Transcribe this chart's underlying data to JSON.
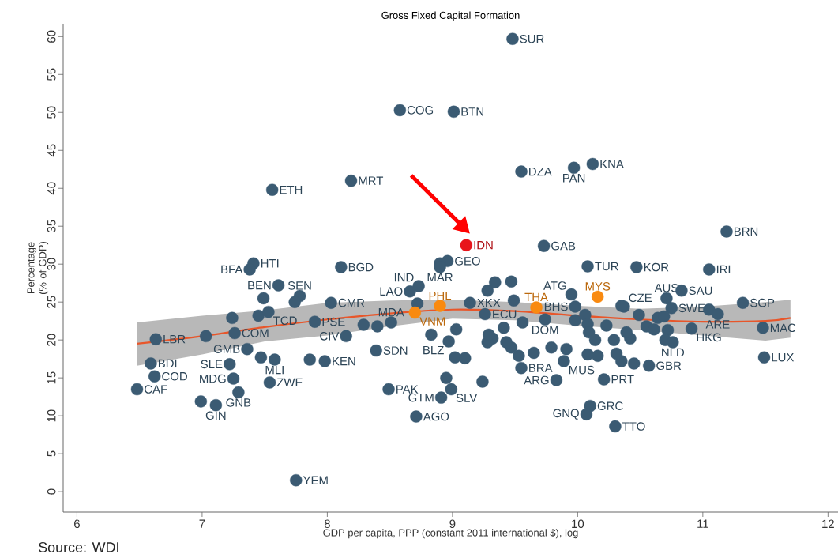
{
  "chart_data": {
    "type": "scatter",
    "title": "Gross Fixed Capital Formation",
    "xlabel": "GDP per capita, PPP (constant 2011 international $), log",
    "ylabel": "Percentage (% of GDP)",
    "xlim": [
      5.89,
      12.08
    ],
    "ylim": [
      -2.7,
      61.7
    ],
    "xticks": [
      6,
      7,
      8,
      9,
      10,
      11,
      12
    ],
    "yticks": [
      0,
      5,
      10,
      15,
      20,
      25,
      30,
      35,
      40,
      45,
      50,
      55,
      60
    ],
    "marker": "circle",
    "annotations": [
      "Source: WDI"
    ],
    "series": [
      {
        "color": "#3b5b73",
        "x": [
          9.48,
          8.58,
          9.01,
          9.55,
          9.97,
          10.12,
          8.19,
          7.56,
          9.73,
          11.19,
          7.41,
          7.38,
          8.11,
          8.96,
          8.9,
          8.9,
          10.08,
          10.47,
          11.05,
          7.61,
          7.49,
          7.78,
          7.74,
          8.03,
          7.24,
          7.45,
          7.53,
          7.9,
          6.63,
          7.03,
          7.26,
          7.36,
          7.47,
          7.58,
          7.86,
          7.98,
          8.15,
          8.39,
          8.29,
          8.4,
          8.51,
          6.59,
          6.62,
          6.48,
          7.22,
          7.25,
          7.54,
          7.29,
          6.99,
          7.11,
          7.75,
          8.49,
          8.71,
          8.73,
          8.66,
          8.72,
          9.14,
          9.26,
          9.34,
          9.47,
          9.28,
          9.49,
          9.74,
          9.56,
          9.95,
          9.98,
          10.37,
          10.35,
          9.98,
          10.06,
          10.08,
          10.09,
          10.14,
          10.23,
          10.29,
          10.35,
          10.08,
          10.16,
          10.31,
          9.79,
          9.91,
          9.89,
          9.83,
          10.21,
          9.65,
          9.53,
          9.55,
          9.47,
          9.43,
          9.41,
          9.32,
          9.28,
          9.29,
          9.03,
          8.97,
          8.83,
          9.02,
          9.1,
          8.95,
          8.99,
          8.91,
          9.24,
          10.1,
          10.07,
          10.3,
          10.71,
          10.83,
          10.75,
          10.49,
          10.64,
          10.69,
          11.05,
          11.12,
          11.32,
          10.91,
          11.48,
          11.49,
          10.57,
          10.45,
          10.55,
          10.61,
          10.72,
          10.42,
          10.7,
          10.76,
          10.39
        ],
        "values": [
          59.7,
          50.3,
          50.1,
          42.2,
          42.7,
          43.2,
          41.0,
          39.8,
          32.4,
          34.3,
          30.1,
          29.3,
          29.6,
          30.4,
          30.1,
          29.6,
          29.7,
          29.6,
          29.3,
          27.2,
          25.5,
          25.8,
          25.0,
          24.9,
          22.9,
          23.2,
          23.7,
          22.4,
          20.1,
          20.5,
          20.9,
          18.8,
          17.7,
          17.4,
          17.4,
          17.2,
          20.5,
          18.6,
          22.0,
          21.8,
          22.3,
          16.9,
          15.2,
          13.5,
          16.8,
          14.9,
          14.4,
          13.1,
          11.9,
          11.4,
          1.5,
          13.5,
          9.9,
          27.1,
          26.4,
          24.8,
          24.9,
          23.4,
          27.6,
          27.7,
          26.5,
          25.2,
          22.7,
          22.3,
          26.0,
          24.4,
          24.4,
          24.5,
          22.6,
          23.3,
          22.1,
          21.0,
          20.0,
          21.9,
          20.0,
          17.2,
          18.1,
          17.9,
          18.2,
          19.0,
          18.8,
          17.2,
          14.7,
          14.8,
          18.3,
          17.9,
          16.3,
          19.0,
          19.7,
          21.6,
          20.2,
          19.7,
          20.7,
          21.4,
          19.8,
          20.7,
          17.7,
          17.6,
          15.0,
          13.5,
          12.4,
          14.5,
          11.3,
          10.2,
          8.6,
          25.5,
          26.5,
          24.2,
          23.3,
          22.9,
          23.1,
          24.0,
          23.4,
          24.9,
          21.5,
          21.6,
          17.7,
          16.6,
          16.9,
          21.8,
          21.4,
          21.3,
          20.2,
          20.0,
          19.7,
          21.0
        ],
        "value_labels": [
          "SUR",
          "COG",
          "BTN",
          "DZA",
          "PAN",
          "KNA",
          "MRT",
          "ETH",
          "GAB",
          "BRN",
          "HTI",
          "BFA",
          "BGD",
          "GEO",
          null,
          "MAR",
          "TUR",
          "KOR",
          "IRL",
          "BEN",
          null,
          "SEN",
          null,
          "CMR",
          null,
          null,
          "TCD",
          "PSE",
          "LBR",
          null,
          "COM",
          "GMB",
          null,
          "MLI",
          null,
          "KEN",
          "CIV",
          "SDN",
          null,
          null,
          "MDA",
          "BDI",
          "COD",
          "CAF",
          "SLE",
          "MDG",
          "ZWE",
          "GNB",
          null,
          "GIN",
          "YEM",
          "PAK",
          "AGO",
          "IND",
          "LAO",
          null,
          "XKX",
          "ECU",
          null,
          null,
          null,
          null,
          "DOM",
          null,
          "ATG",
          "BHS",
          "CZE",
          null,
          null,
          null,
          null,
          null,
          null,
          null,
          null,
          null,
          null,
          null,
          null,
          null,
          null,
          "MUS",
          "ARG",
          "PRT",
          null,
          null,
          "BRA",
          null,
          null,
          null,
          null,
          null,
          null,
          null,
          "BLZ",
          null,
          null,
          null,
          null,
          "SLV",
          "GTM",
          null,
          "GRC",
          "GNQ",
          "TTO",
          "AUS",
          "SAU",
          "SWE",
          null,
          null,
          null,
          null,
          "ARE",
          "SGP",
          "HKG",
          "MAC",
          "LUX",
          "GBR",
          null,
          null,
          null,
          null,
          null,
          null,
          "NLD",
          null
        ]
      },
      {
        "color": "#e8141b",
        "x": [
          9.11
        ],
        "values": [
          32.5
        ],
        "value_labels": [
          "IDN"
        ]
      },
      {
        "color": "#f98a10",
        "x": [
          8.9,
          8.7,
          9.67,
          10.16
        ],
        "values": [
          24.5,
          23.6,
          24.3,
          25.7
        ],
        "value_labels": [
          "PHL",
          "VNM",
          "THA",
          "MYS"
        ]
      },
      {
        "type": "line",
        "marker": "none",
        "color": "#e8562a",
        "x": [
          6.48,
          7.0,
          7.5,
          8.0,
          8.5,
          9.0,
          9.5,
          10.0,
          10.5,
          11.0,
          11.5,
          11.7
        ],
        "values": [
          19.5,
          20.5,
          21.7,
          22.7,
          23.5,
          24.0,
          23.8,
          23.2,
          22.7,
          22.4,
          22.5,
          22.9
        ],
        "lower": [
          16.6,
          18.1,
          19.8,
          20.6,
          21.8,
          22.8,
          22.6,
          21.9,
          21.3,
          20.6,
          19.9,
          20.3
        ],
        "upper": [
          22.3,
          23.2,
          23.9,
          24.9,
          25.2,
          25.3,
          25.0,
          24.5,
          24.1,
          24.4,
          25.0,
          25.3
        ]
      }
    ]
  }
}
